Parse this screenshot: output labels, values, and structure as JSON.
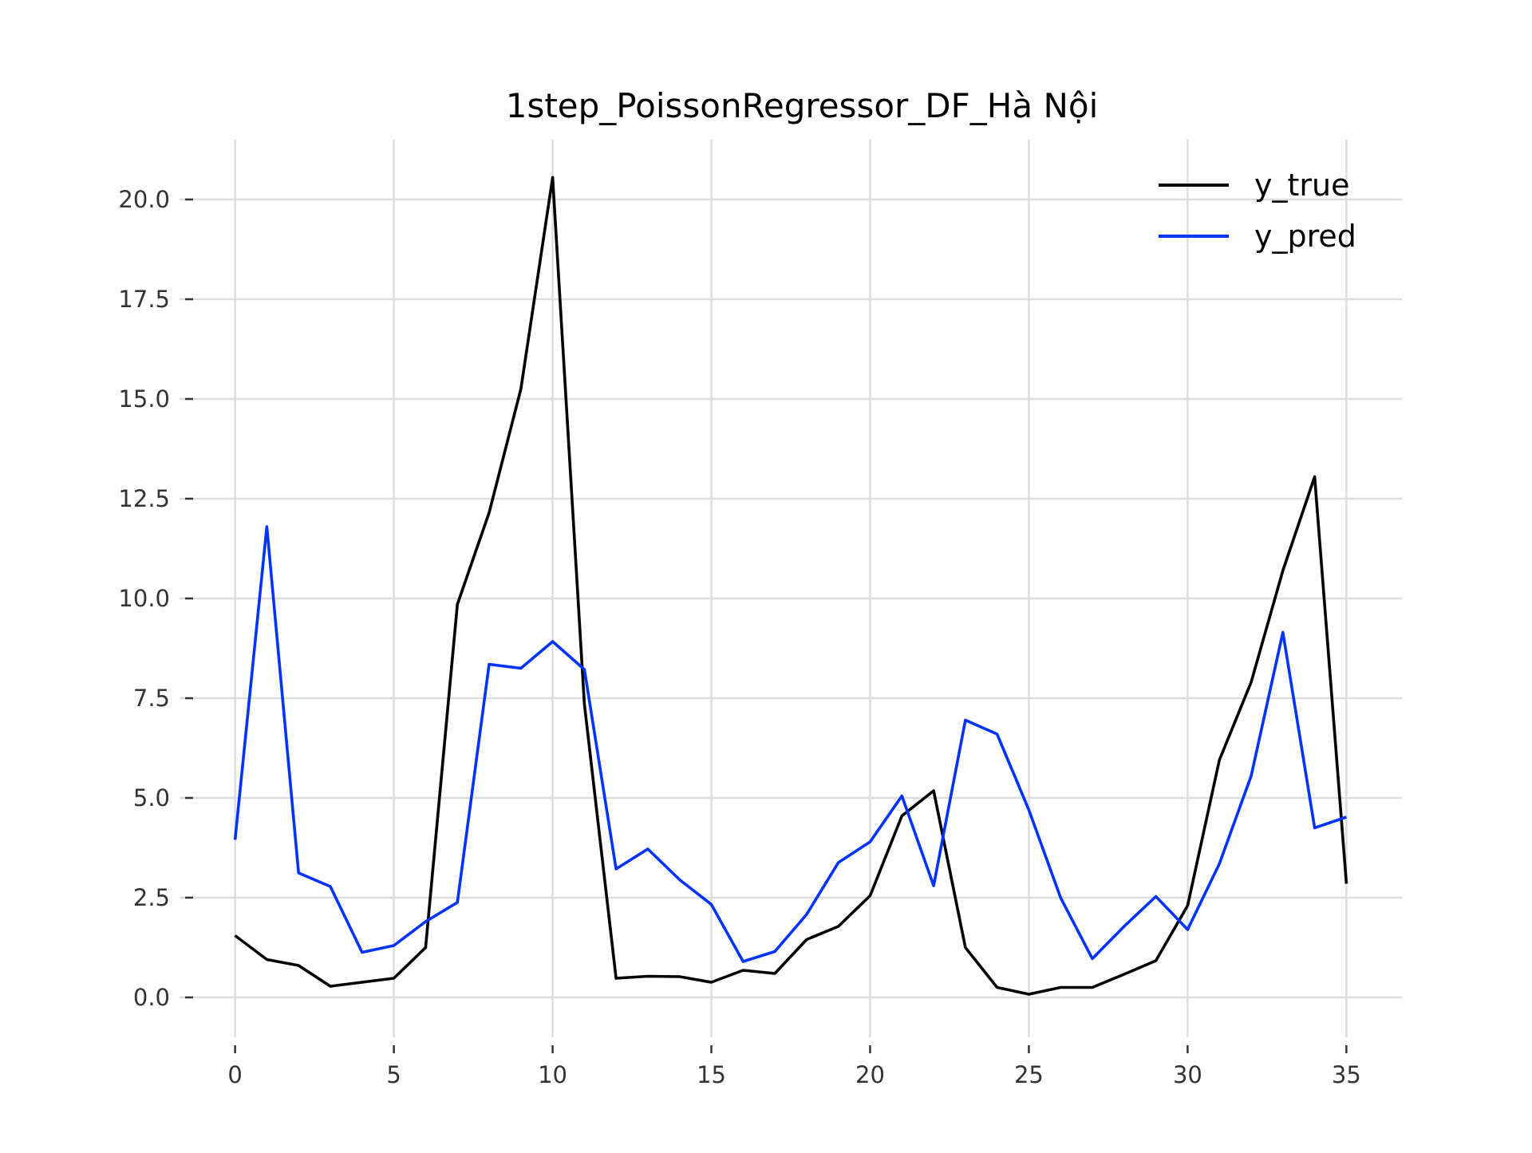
{
  "chart_data": {
    "type": "line",
    "title": "1step_PoissonRegressor_DF_Hà Nội",
    "xlabel": "",
    "ylabel": "",
    "xlim": [
      -1.75,
      36.75
    ],
    "ylim": [
      -1.0,
      21.5
    ],
    "xticks": [
      0,
      5,
      10,
      15,
      20,
      25,
      30,
      35
    ],
    "xtick_labels": [
      "0",
      "5",
      "10",
      "15",
      "20",
      "25",
      "30",
      "35"
    ],
    "yticks": [
      0,
      2.5,
      5,
      7.5,
      10,
      12.5,
      15,
      17.5,
      20
    ],
    "ytick_labels": [
      "0.0",
      "2.5",
      "5.0",
      "7.5",
      "10.0",
      "12.5",
      "15.0",
      "17.5",
      "20.0"
    ],
    "grid": true,
    "legend_position": "top-right",
    "x": [
      0,
      1,
      2,
      3,
      4,
      5,
      6,
      7,
      8,
      9,
      10,
      11,
      12,
      13,
      14,
      15,
      16,
      17,
      18,
      19,
      20,
      21,
      22,
      23,
      24,
      25,
      26,
      27,
      28,
      29,
      30,
      31,
      32,
      33,
      34,
      35
    ],
    "series": [
      {
        "name": "y_true",
        "color": "#000000",
        "values": [
          1.55,
          0.95,
          0.8,
          0.28,
          0.38,
          0.48,
          1.25,
          9.85,
          12.15,
          15.25,
          20.55,
          7.35,
          0.48,
          0.53,
          0.52,
          0.38,
          0.68,
          0.6,
          1.45,
          1.78,
          2.55,
          4.55,
          5.18,
          1.25,
          0.25,
          0.08,
          0.25,
          0.25,
          0.58,
          0.92,
          2.3,
          5.95,
          7.9,
          10.7,
          13.05,
          2.85
        ]
      },
      {
        "name": "y_pred",
        "color": "#0033ff",
        "values": [
          3.95,
          11.8,
          3.12,
          2.78,
          1.13,
          1.3,
          1.9,
          2.38,
          8.35,
          8.25,
          8.92,
          8.22,
          3.22,
          3.72,
          2.95,
          2.33,
          0.9,
          1.15,
          2.08,
          3.38,
          3.9,
          5.05,
          2.8,
          6.95,
          6.6,
          4.7,
          2.5,
          0.97,
          1.78,
          2.53,
          1.7,
          3.35,
          5.55,
          9.15,
          4.25,
          4.52
        ]
      }
    ]
  }
}
